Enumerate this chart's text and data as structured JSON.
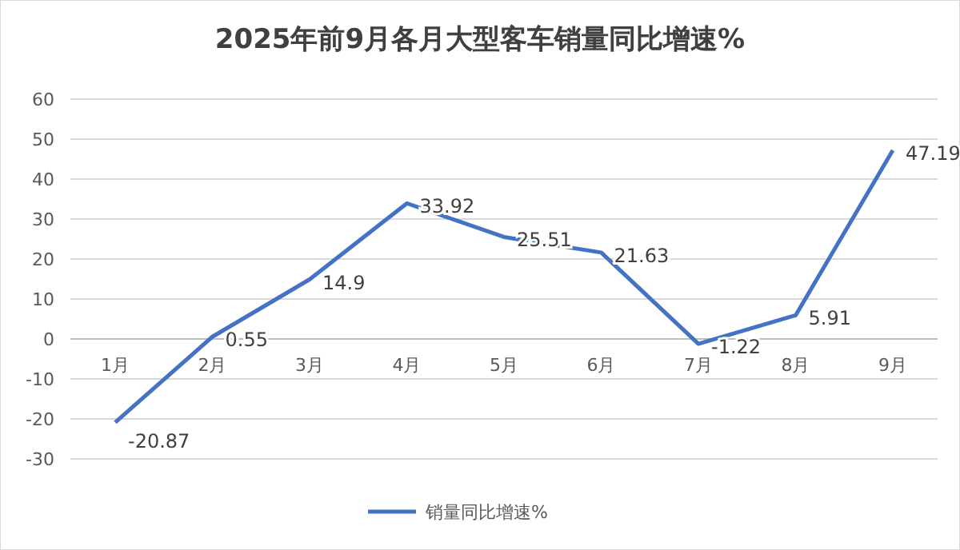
{
  "chart_data": {
    "type": "line",
    "title": "2025年前9月各月大型客车销量同比增速%",
    "categories": [
      "1月",
      "2月",
      "3月",
      "4月",
      "5月",
      "6月",
      "7月",
      "8月",
      "9月"
    ],
    "series": [
      {
        "name": "销量同比增速%",
        "color": "#4472c4",
        "values": [
          -20.87,
          0.55,
          14.9,
          33.92,
          25.51,
          21.63,
          -1.22,
          5.91,
          47.19
        ]
      }
    ],
    "ylim": [
      -30,
      60
    ],
    "yticks": [
      -30,
      -20,
      -10,
      0,
      10,
      20,
      30,
      40,
      50,
      60
    ],
    "grid": "y",
    "legend": "bottom",
    "data_labels": true,
    "marker": "none",
    "line_style": "solid"
  }
}
